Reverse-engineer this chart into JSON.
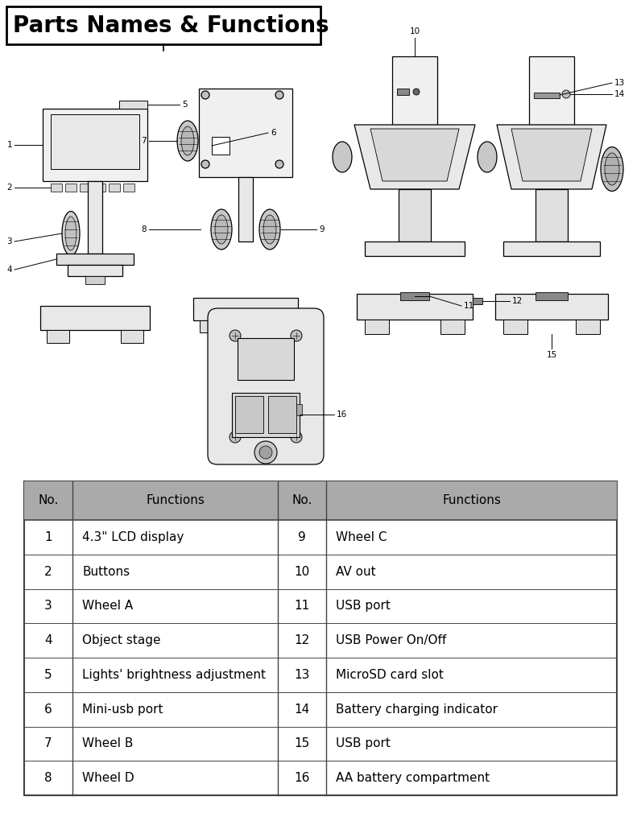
{
  "title": "Parts Names & Functions",
  "title_fontsize": 20,
  "title_fontweight": "bold",
  "bg_color": "#ffffff",
  "table_header_bg": "#aaaaaa",
  "table_border_color": "#444444",
  "table_left_cols": [
    "No.",
    "Functions"
  ],
  "table_right_cols": [
    "No.",
    "Functions"
  ],
  "table_data_left": [
    [
      "1",
      "4.3\" LCD display"
    ],
    [
      "2",
      "Buttons"
    ],
    [
      "3",
      "Wheel A"
    ],
    [
      "4",
      "Object stage"
    ],
    [
      "5",
      "Lights' brightness adjustment"
    ],
    [
      "6",
      "Mini-usb port"
    ],
    [
      "7",
      "Wheel B"
    ],
    [
      "8",
      "Wheel D"
    ]
  ],
  "table_data_right": [
    [
      "9",
      "Wheel C"
    ],
    [
      "10",
      "AV out"
    ],
    [
      "11",
      "USB port"
    ],
    [
      "12",
      "USB Power On/Off"
    ],
    [
      "13",
      "MicroSD card slot"
    ],
    [
      "14",
      "Battery charging indicator"
    ],
    [
      "15",
      "USB port"
    ],
    [
      "16",
      "AA battery compartment"
    ]
  ],
  "table_fontsize": 11,
  "table_header_fontsize": 11,
  "figure_bg": "#ffffff"
}
